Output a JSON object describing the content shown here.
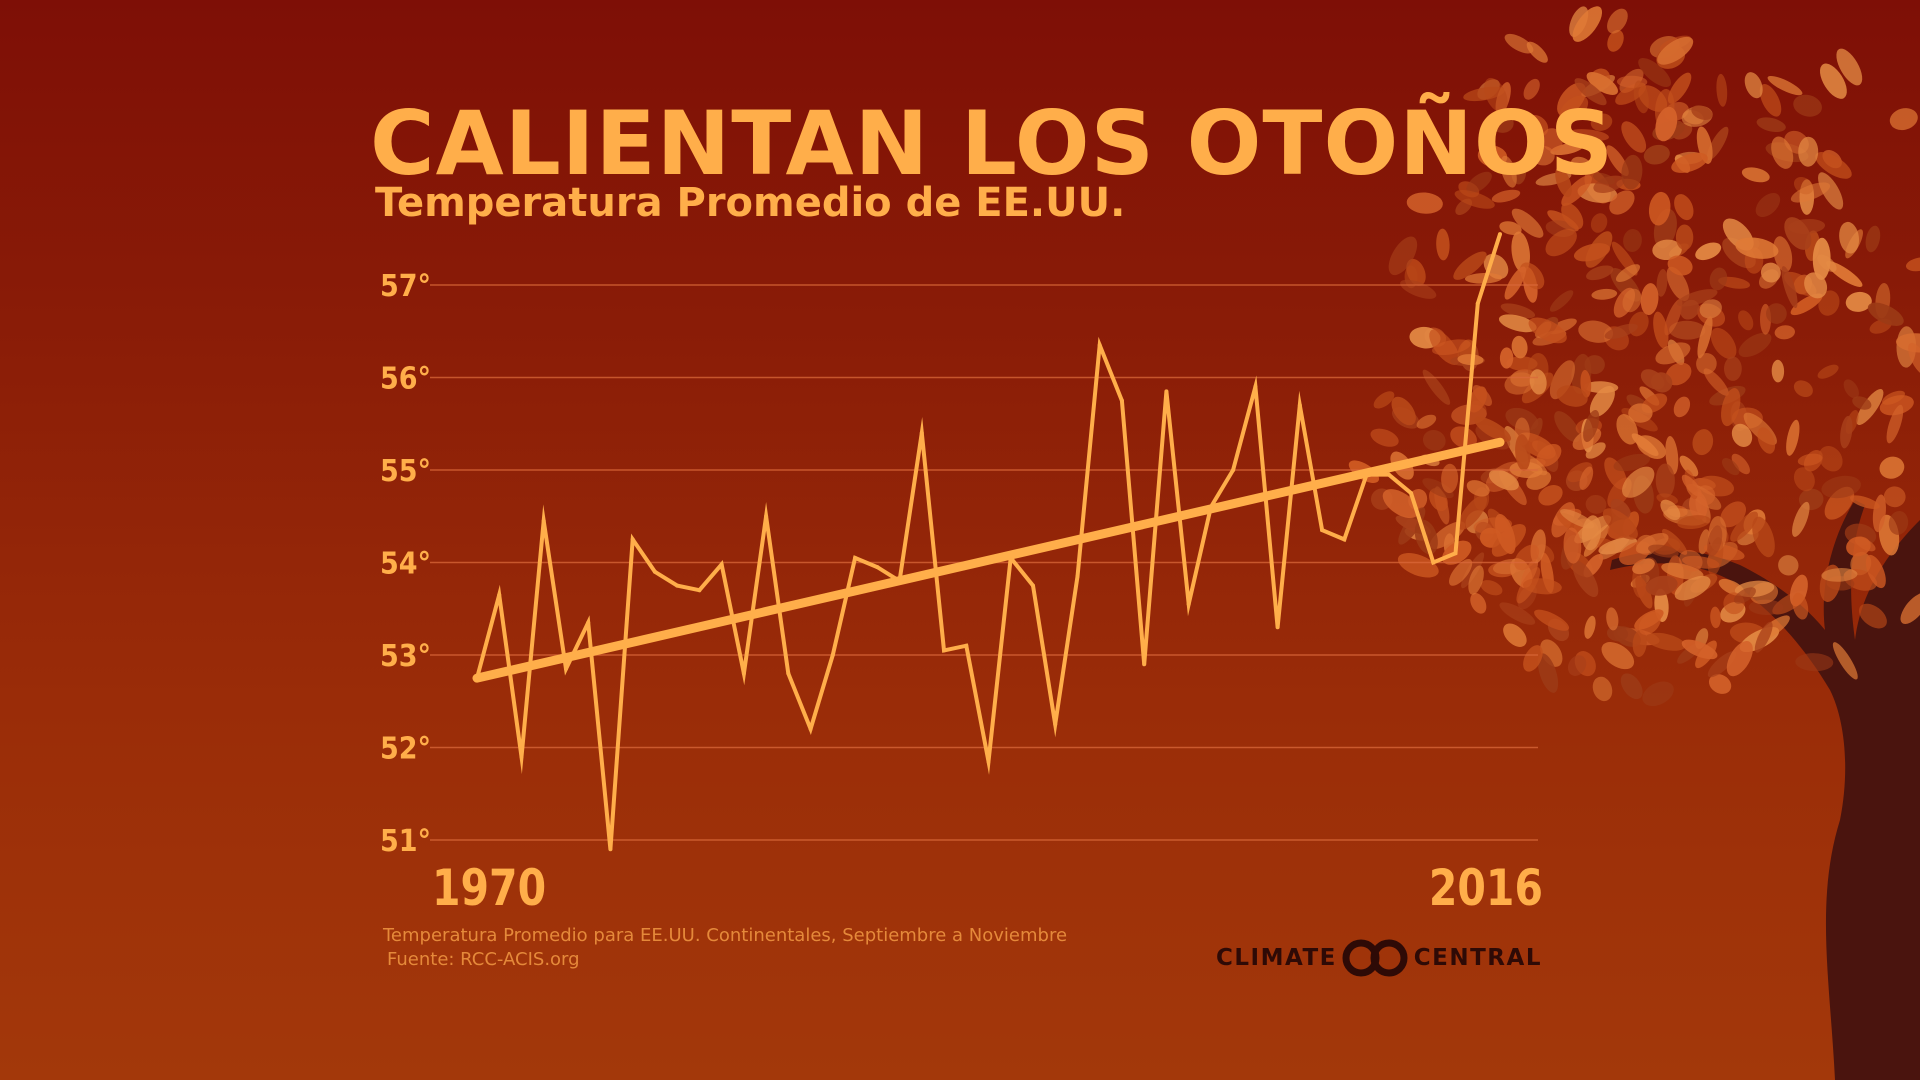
{
  "header": {
    "title": "CALIENTAN LOS OTOÑOS",
    "subtitle": "Temperatura Promedio de EE.UU."
  },
  "colors": {
    "accent": "#ffae4a",
    "background_top": "#7e0f06",
    "background_bottom": "#a3380a",
    "gridline": "#d9683a",
    "logo": "#2e0a06"
  },
  "chart_data": {
    "type": "line",
    "title": "CALIENTAN LOS OTOÑOS",
    "subtitle": "Temperatura Promedio de EE.UU.",
    "xlabel": "",
    "ylabel": "",
    "x_tick_labels": [
      "1970",
      "2016"
    ],
    "y_tick_labels": [
      "51°",
      "52°",
      "53°",
      "54°",
      "55°",
      "56°",
      "57°"
    ],
    "ylim": [
      51,
      57.5
    ],
    "xlim": [
      1970,
      2016
    ],
    "grid": true,
    "legend": "none",
    "series": [
      {
        "x": [
          1970,
          1971,
          1972,
          1973,
          1974,
          1975,
          1976,
          1977,
          1978,
          1979,
          1980,
          1981,
          1982,
          1983,
          1984,
          1985,
          1986,
          1987,
          1988,
          1989,
          1990,
          1991,
          1992,
          1993,
          1994,
          1995,
          1996,
          1997,
          1998,
          1999,
          2000,
          2001,
          2002,
          2003,
          2004,
          2005,
          2006,
          2007,
          2008,
          2009,
          2010,
          2011,
          2012,
          2013,
          2014,
          2015,
          2016
        ],
        "values": [
          52.75,
          53.65,
          51.9,
          54.45,
          52.85,
          53.35,
          50.9,
          54.25,
          53.9,
          53.75,
          53.7,
          53.98,
          52.8,
          54.5,
          52.8,
          52.2,
          53.0,
          54.05,
          53.95,
          53.8,
          55.4,
          53.05,
          53.1,
          51.85,
          54.05,
          53.75,
          52.25,
          53.85,
          56.35,
          55.75,
          52.9,
          55.85,
          53.55,
          54.6,
          55.0,
          55.9,
          53.3,
          55.7,
          54.35,
          54.25,
          54.95,
          54.95,
          54.75,
          54.0,
          54.1,
          56.8,
          57.55
        ]
      },
      {
        "name": "",
        "type": "trend",
        "x": [
          1970,
          2016
        ],
        "values": [
          52.75,
          55.3
        ]
      }
    ]
  },
  "footer": {
    "note_line1": "Temperatura Promedio para EE.UU. Continentales, Septiembre a Noviembre",
    "note_line2": "Fuente: RCC-ACIS.org",
    "logo_left": "CLIMATE",
    "logo_right": "CENTRAL"
  }
}
